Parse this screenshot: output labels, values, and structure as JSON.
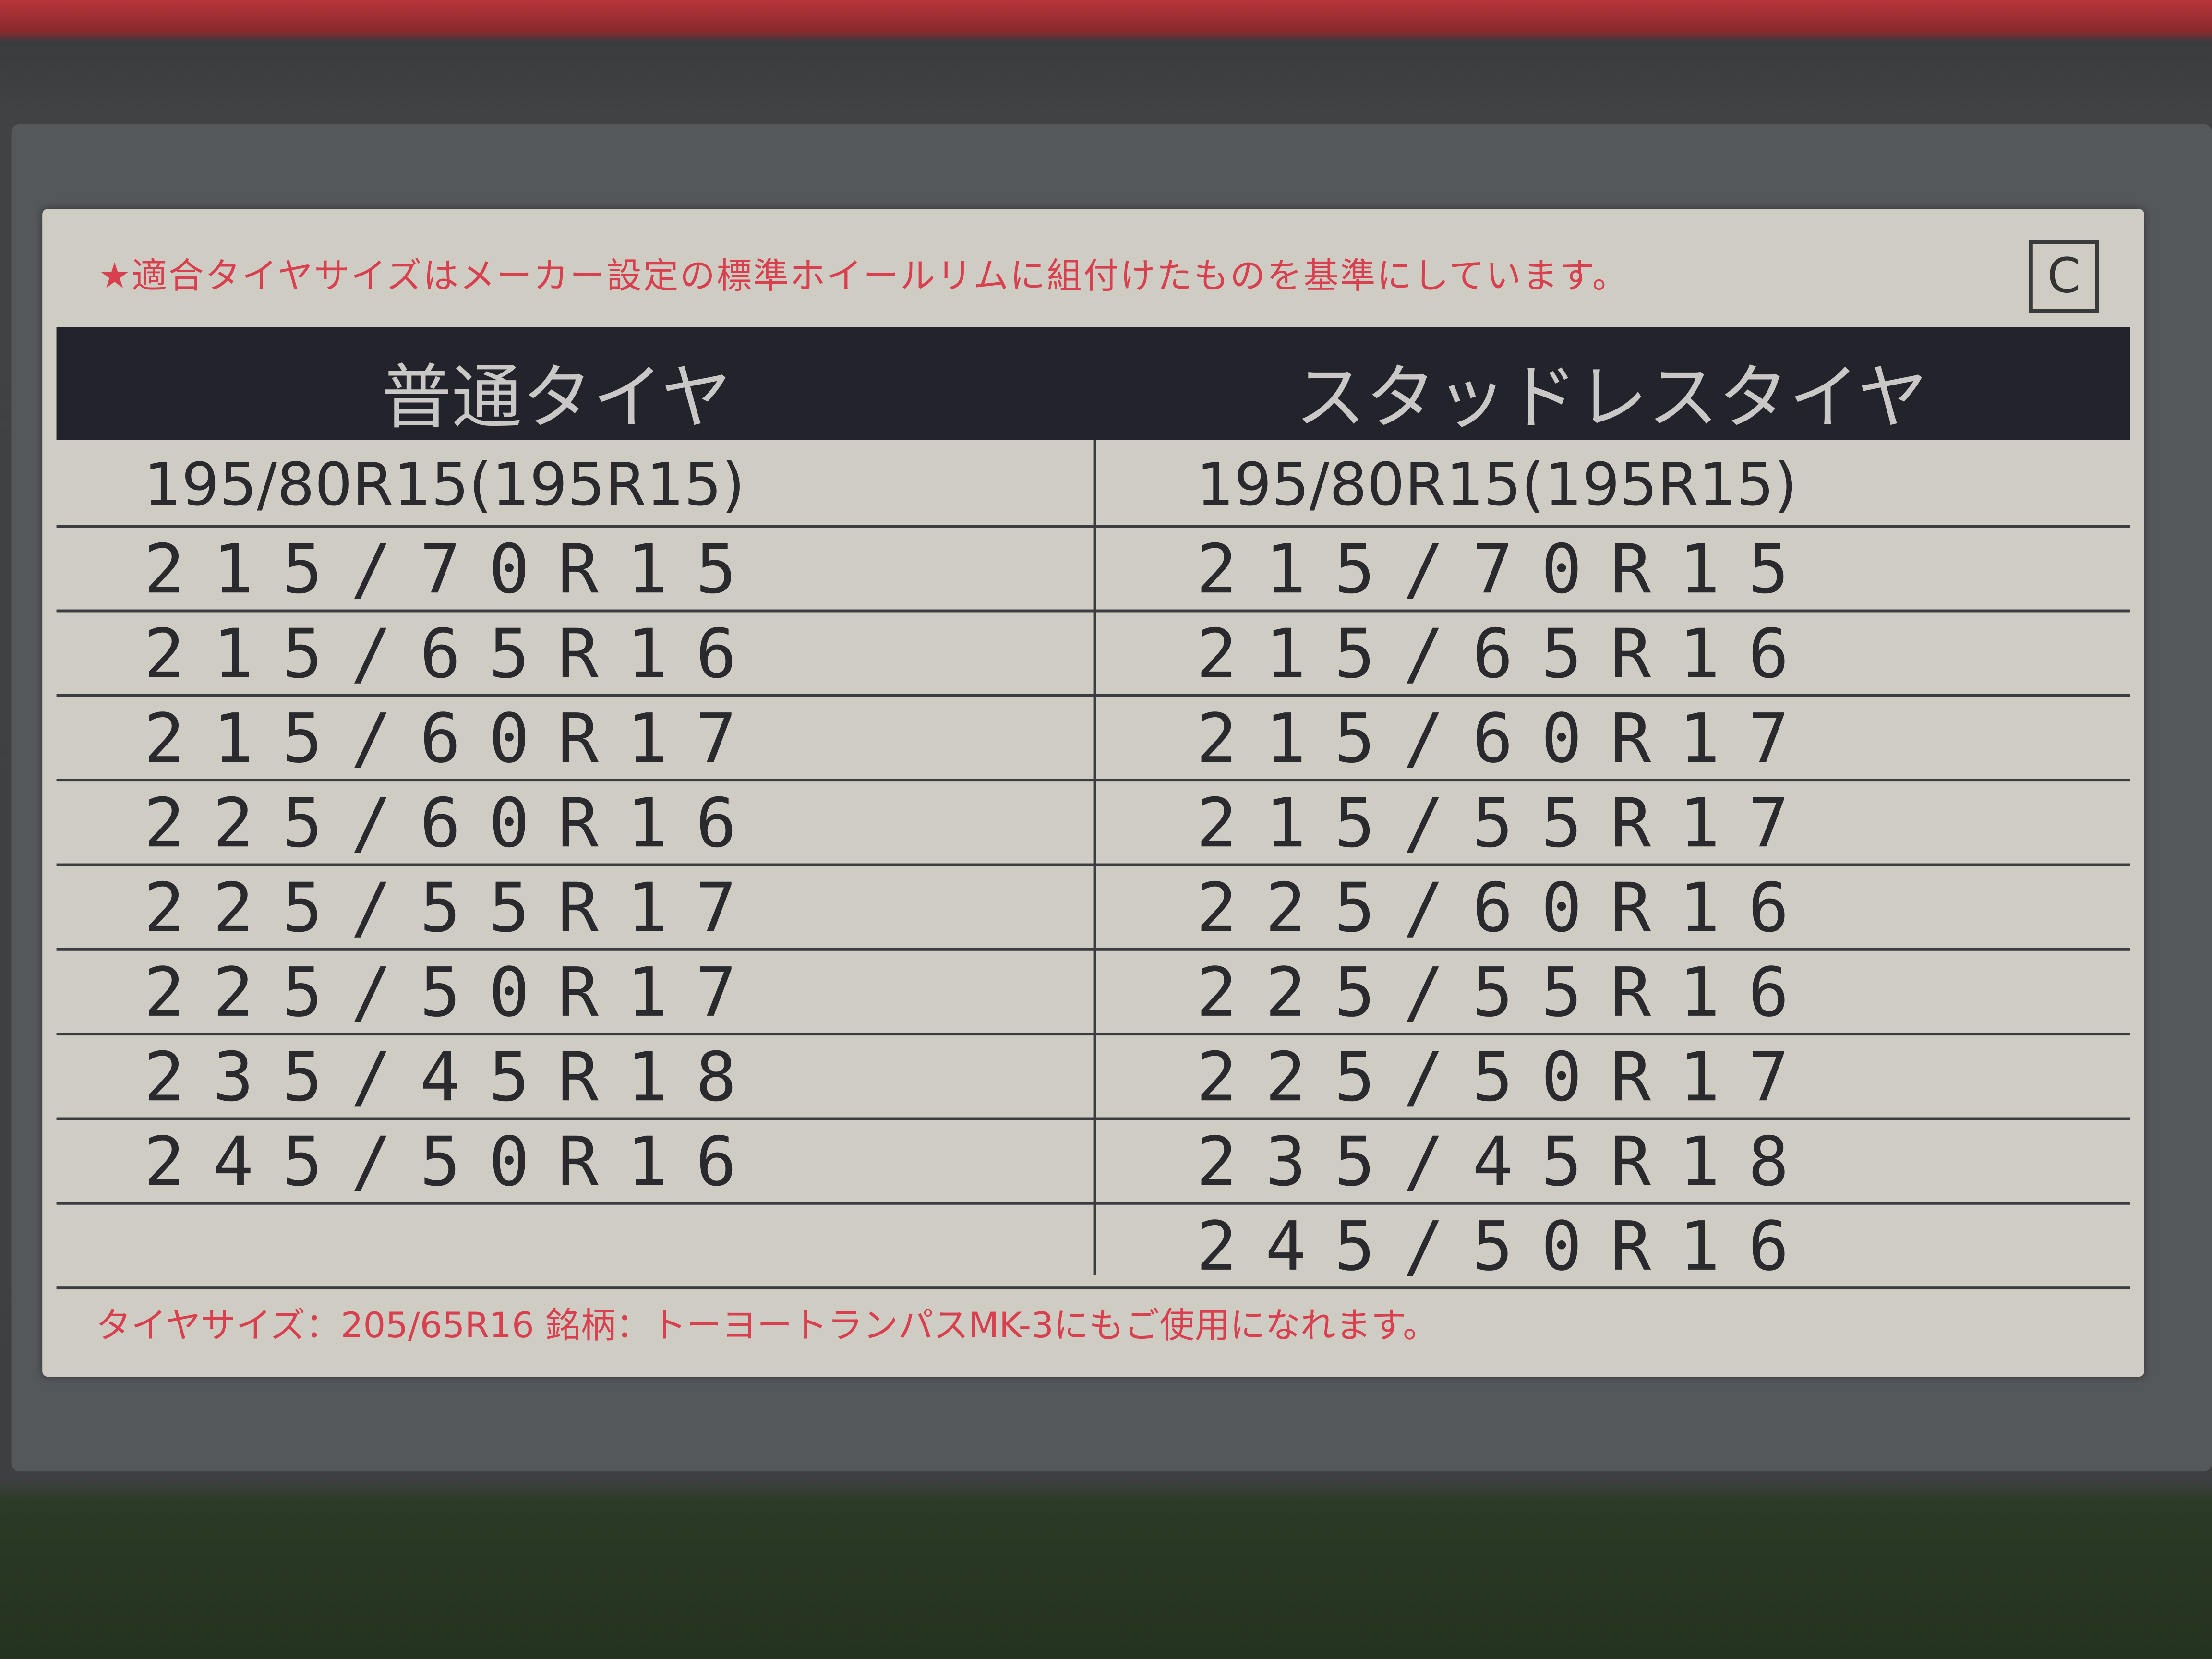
{
  "note": "★適合タイヤサイズはメーカー設定の標準ホイールリムに組付けたものを基準にしています。",
  "code": "C",
  "headers": {
    "normal": "普通タイヤ",
    "studless": "スタッドレスタイヤ"
  },
  "normal": [
    "195/80R15(195R15)",
    "215/70R15",
    "215/65R16",
    "215/60R17",
    "225/60R16",
    "225/55R17",
    "225/50R17",
    "235/45R18",
    "245/50R16",
    ""
  ],
  "studless": [
    "195/80R15(195R15)",
    "215/70R15",
    "215/65R16",
    "215/60R17",
    "215/55R17",
    "225/60R16",
    "225/55R16",
    "225/50R17",
    "235/45R18",
    "245/50R16"
  ],
  "footer": "タイヤサイズ：205/65R16 銘柄：トーヨートランパスMK-3にもご使用になれます。",
  "colors": {
    "red_text": "#d9404f",
    "label": "#cfcdc3",
    "header_band": "#23232b"
  }
}
